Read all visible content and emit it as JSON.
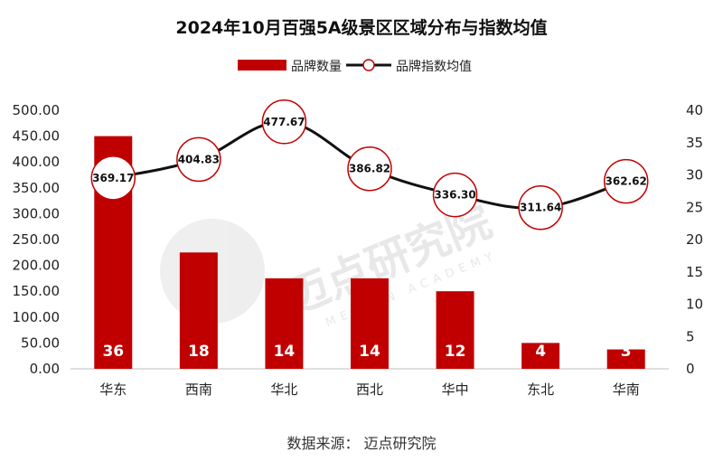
{
  "chart_data": {
    "type": "bar+line",
    "title": "2024年10月百强5A级景区区域分布与指数均值",
    "categories": [
      "华东",
      "西南",
      "华北",
      "西北",
      "华中",
      "东北",
      "华南"
    ],
    "series": [
      {
        "name": "品牌数量",
        "kind": "bar",
        "axis": "right",
        "values": [
          36,
          18,
          14,
          14,
          12,
          4,
          3
        ],
        "color": "#c00000"
      },
      {
        "name": "品牌指数均值",
        "kind": "line",
        "axis": "left",
        "values": [
          369.17,
          404.83,
          477.67,
          386.82,
          336.3,
          311.64,
          362.62
        ],
        "color": "#111111"
      }
    ],
    "y_left": {
      "min": 0,
      "max": 500,
      "step": 50,
      "ticks": [
        "0.00",
        "50.00",
        "100.00",
        "150.00",
        "200.00",
        "250.00",
        "300.00",
        "350.00",
        "400.00",
        "450.00",
        "500.00"
      ]
    },
    "y_right": {
      "min": 0,
      "max": 40,
      "step": 5,
      "ticks": [
        "0",
        "5",
        "10",
        "15",
        "20",
        "25",
        "30",
        "35",
        "40"
      ]
    },
    "bar_labels": [
      "36",
      "18",
      "14",
      "14",
      "12",
      "4",
      "3"
    ],
    "point_labels": [
      "369.17",
      "404.83",
      "477.67",
      "386.82",
      "336.30",
      "311.64",
      "362.62"
    ],
    "legend_position": "top-center"
  },
  "watermark": {
    "text": "迈点研究院",
    "sub": "MEADIN ACADEMY"
  },
  "source": "数据来源：  迈点研究院",
  "colors": {
    "bar": "#c00000",
    "line": "#111111",
    "marker_edge": "#c00000"
  }
}
